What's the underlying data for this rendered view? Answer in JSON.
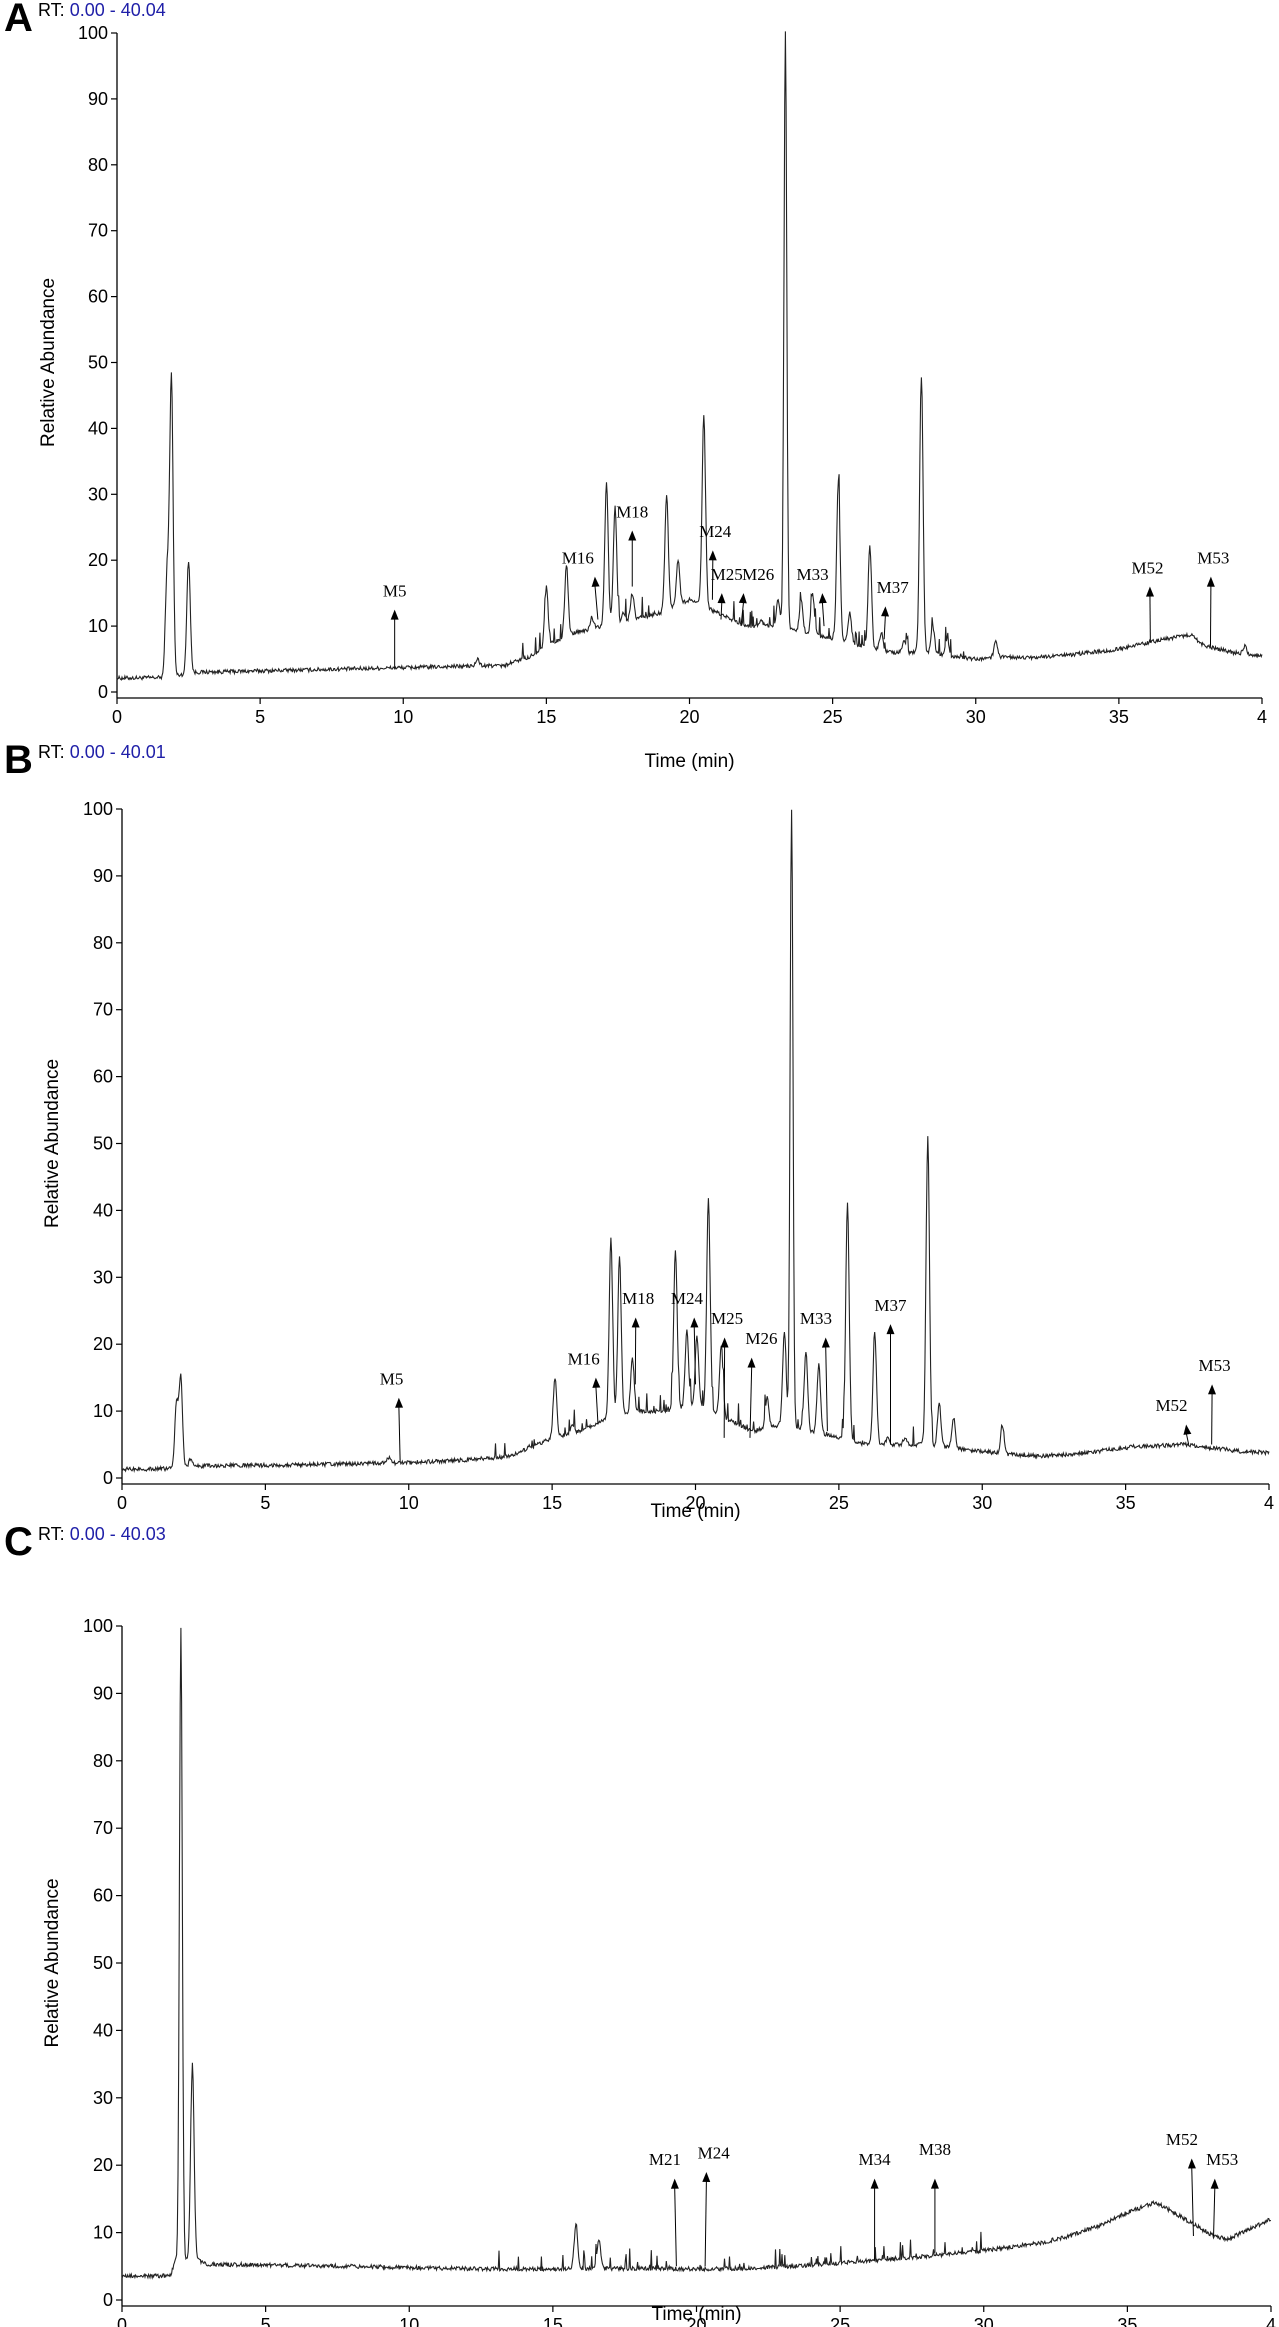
{
  "chart_data": [
    {
      "panel": "A",
      "type": "line",
      "rt_prefix": "RT:",
      "rt_range": "0.00 - 40.04",
      "xlabel": "Time (min)",
      "ylabel": "Relative Abundance",
      "xlim": [
        0,
        40
      ],
      "ylim": [
        0,
        100
      ],
      "x_ticks": [
        "0",
        "5",
        "10",
        "15",
        "20",
        "25",
        "30",
        "35",
        "4"
      ],
      "y_ticks": [
        "0",
        "10",
        "20",
        "30",
        "40",
        "50",
        "60",
        "70",
        "80",
        "90",
        "100"
      ],
      "baseline": [
        [
          0,
          2.1
        ],
        [
          1.6,
          2.2
        ],
        [
          2.8,
          3.0
        ],
        [
          5,
          3.2
        ],
        [
          8,
          3.5
        ],
        [
          10,
          3.7
        ],
        [
          12,
          3.9
        ],
        [
          13.5,
          4.0
        ],
        [
          14.5,
          5.5
        ],
        [
          15,
          7
        ],
        [
          16,
          9
        ],
        [
          17,
          10
        ],
        [
          18,
          11
        ],
        [
          19,
          12
        ],
        [
          20,
          14
        ],
        [
          21,
          12
        ],
        [
          22,
          10
        ],
        [
          23,
          10
        ],
        [
          24,
          9
        ],
        [
          25,
          8
        ],
        [
          26,
          7
        ],
        [
          27,
          6
        ],
        [
          28,
          6
        ],
        [
          29,
          5.5
        ],
        [
          30,
          5
        ],
        [
          31,
          5.3
        ],
        [
          32,
          5.2
        ],
        [
          33,
          5.5
        ],
        [
          34,
          6
        ],
        [
          35,
          6.5
        ],
        [
          36,
          7.5
        ],
        [
          37,
          8.3
        ],
        [
          37.5,
          8.7
        ],
        [
          38,
          7
        ],
        [
          39,
          6
        ],
        [
          40,
          5.5
        ]
      ],
      "peaks": [
        [
          1.9,
          48
        ],
        [
          1.75,
          18
        ],
        [
          2.5,
          20
        ],
        [
          12.6,
          5
        ],
        [
          15.0,
          16
        ],
        [
          15.7,
          19
        ],
        [
          16.6,
          11
        ],
        [
          17.1,
          32
        ],
        [
          17.4,
          28
        ],
        [
          17.7,
          12
        ],
        [
          18.0,
          15
        ],
        [
          18.4,
          9
        ],
        [
          19.2,
          30
        ],
        [
          19.6,
          20
        ],
        [
          20.0,
          11
        ],
        [
          20.5,
          42
        ],
        [
          21.0,
          9
        ],
        [
          21.8,
          10
        ],
        [
          22.5,
          11
        ],
        [
          23.1,
          14
        ],
        [
          23.35,
          100
        ],
        [
          23.9,
          14
        ],
        [
          24.3,
          15
        ],
        [
          25.2,
          32
        ],
        [
          25.6,
          12
        ],
        [
          26.3,
          22
        ],
        [
          26.7,
          9
        ],
        [
          27.5,
          8
        ],
        [
          28.1,
          48
        ],
        [
          28.5,
          10
        ],
        [
          29.0,
          8
        ],
        [
          30.7,
          8
        ],
        [
          36.0,
          7
        ],
        [
          39.4,
          7
        ]
      ],
      "annotations": [
        {
          "label": "M5",
          "x": 9.7,
          "y_tip": 12.5,
          "y_base": 3.7,
          "label_x": 9.7,
          "label_y": 14.5
        },
        {
          "label": "M16",
          "x": 16.8,
          "y_tip": 17.5,
          "y_base": 11,
          "label_x": 16.1,
          "label_y": 19.5
        },
        {
          "label": "M18",
          "x": 18.0,
          "y_tip": 24.5,
          "y_base": 16,
          "label_x": 18.0,
          "label_y": 26.5
        },
        {
          "label": "M24",
          "x": 20.8,
          "y_tip": 21.5,
          "y_base": 14,
          "label_x": 20.9,
          "label_y": 23.5
        },
        {
          "label": "M25",
          "x": 21.1,
          "y_tip": 15,
          "y_base": 11,
          "label_x": 21.3,
          "label_y": 17
        },
        {
          "label": "M26",
          "x": 21.8,
          "y_tip": 15,
          "y_base": 10,
          "label_x": 22.4,
          "label_y": 17
        },
        {
          "label": "M33",
          "x": 24.7,
          "y_tip": 15,
          "y_base": 10,
          "label_x": 24.3,
          "label_y": 17
        },
        {
          "label": "M37",
          "x": 26.8,
          "y_tip": 13,
          "y_base": 8,
          "label_x": 27.1,
          "label_y": 15
        },
        {
          "label": "M52",
          "x": 36.1,
          "y_tip": 16,
          "y_base": 7.5,
          "label_x": 36.0,
          "label_y": 18
        },
        {
          "label": "M53",
          "x": 38.2,
          "y_tip": 17.5,
          "y_base": 7,
          "label_x": 38.3,
          "label_y": 19.5
        }
      ]
    },
    {
      "panel": "B",
      "type": "line",
      "rt_prefix": "RT:",
      "rt_range": "0.00 - 40.01",
      "xlabel": "Time (min)",
      "ylabel": "Relative Abundance",
      "xlim": [
        0,
        40
      ],
      "ylim": [
        0,
        100
      ],
      "x_ticks": [
        "0",
        "5",
        "10",
        "15",
        "20",
        "25",
        "30",
        "35",
        "4"
      ],
      "y_ticks": [
        "0",
        "10",
        "20",
        "30",
        "40",
        "50",
        "60",
        "70",
        "80",
        "90",
        "100"
      ],
      "baseline": [
        [
          0,
          1.3
        ],
        [
          1.7,
          1.4
        ],
        [
          2.8,
          1.8
        ],
        [
          5,
          1.9
        ],
        [
          8,
          2.1
        ],
        [
          10,
          2.3
        ],
        [
          12,
          2.7
        ],
        [
          13.5,
          3.2
        ],
        [
          14.5,
          5
        ],
        [
          15,
          6
        ],
        [
          16,
          7
        ],
        [
          17,
          9
        ],
        [
          18,
          10
        ],
        [
          19,
          10
        ],
        [
          20,
          11
        ],
        [
          21,
          9
        ],
        [
          22,
          7
        ],
        [
          23,
          8
        ],
        [
          24,
          7
        ],
        [
          25,
          6
        ],
        [
          26,
          5
        ],
        [
          27,
          5
        ],
        [
          28,
          5
        ],
        [
          29,
          4.5
        ],
        [
          30,
          4
        ],
        [
          31,
          3.5
        ],
        [
          32,
          3.3
        ],
        [
          33,
          3.5
        ],
        [
          34,
          4
        ],
        [
          35,
          4.5
        ],
        [
          36,
          4.8
        ],
        [
          37,
          5
        ],
        [
          38,
          4.5
        ],
        [
          39,
          4
        ],
        [
          40,
          3.8
        ]
      ],
      "peaks": [
        [
          1.9,
          11
        ],
        [
          2.05,
          15
        ],
        [
          2.4,
          3
        ],
        [
          9.3,
          3
        ],
        [
          12.9,
          3
        ],
        [
          14.1,
          4
        ],
        [
          15.1,
          15
        ],
        [
          15.7,
          8
        ],
        [
          16.2,
          7
        ],
        [
          17.05,
          36
        ],
        [
          17.35,
          33
        ],
        [
          17.8,
          18
        ],
        [
          18.4,
          8
        ],
        [
          19.3,
          34
        ],
        [
          19.7,
          22
        ],
        [
          20.05,
          21
        ],
        [
          20.45,
          42
        ],
        [
          20.9,
          20
        ],
        [
          22.5,
          12
        ],
        [
          23.1,
          22
        ],
        [
          23.35,
          100
        ],
        [
          23.85,
          19
        ],
        [
          24.3,
          17
        ],
        [
          25.3,
          41
        ],
        [
          26.25,
          22
        ],
        [
          26.7,
          6
        ],
        [
          27.3,
          6
        ],
        [
          28.1,
          51
        ],
        [
          28.5,
          11
        ],
        [
          29.0,
          9
        ],
        [
          30.7,
          8
        ],
        [
          35.2,
          5
        ]
      ],
      "annotations": [
        {
          "label": "M5",
          "x": 9.7,
          "y_tip": 12,
          "y_base": 2.4,
          "label_x": 9.4,
          "label_y": 14
        },
        {
          "label": "M16",
          "x": 16.6,
          "y_tip": 15,
          "y_base": 8,
          "label_x": 16.1,
          "label_y": 17
        },
        {
          "label": "M18",
          "x": 17.9,
          "y_tip": 24,
          "y_base": 14,
          "label_x": 18.0,
          "label_y": 26
        },
        {
          "label": "M24",
          "x": 20.0,
          "y_tip": 24,
          "y_base": 14,
          "label_x": 19.7,
          "label_y": 26
        },
        {
          "label": "M25",
          "x": 21.0,
          "y_tip": 21,
          "y_base": 6,
          "label_x": 21.1,
          "label_y": 23
        },
        {
          "label": "M26",
          "x": 21.9,
          "y_tip": 18,
          "y_base": 6,
          "label_x": 22.3,
          "label_y": 20
        },
        {
          "label": "M33",
          "x": 24.6,
          "y_tip": 21,
          "y_base": 7,
          "label_x": 24.2,
          "label_y": 23
        },
        {
          "label": "M37",
          "x": 26.8,
          "y_tip": 23,
          "y_base": 5,
          "label_x": 26.8,
          "label_y": 25
        },
        {
          "label": "M52",
          "x": 37.2,
          "y_tip": 8,
          "y_base": 5,
          "label_x": 36.6,
          "label_y": 10
        },
        {
          "label": "M53",
          "x": 38.0,
          "y_tip": 14,
          "y_base": 5,
          "label_x": 38.1,
          "label_y": 16
        }
      ]
    },
    {
      "panel": "C",
      "type": "line",
      "rt_prefix": "RT:",
      "rt_range": "0.00 - 40.03",
      "xlabel": "Time (min)",
      "ylabel": "Relative Abundance",
      "xlim": [
        0,
        40
      ],
      "ylim": [
        0,
        100
      ],
      "x_ticks": [
        "0",
        "5",
        "10",
        "15",
        "20",
        "25",
        "30",
        "35",
        "4"
      ],
      "y_ticks": [
        "0",
        "10",
        "20",
        "30",
        "40",
        "50",
        "60",
        "70",
        "80",
        "90",
        "100"
      ],
      "baseline": [
        [
          0,
          3.5
        ],
        [
          1.7,
          3.6
        ],
        [
          1.85,
          6
        ],
        [
          2.6,
          6
        ],
        [
          3,
          5.3
        ],
        [
          5,
          5.2
        ],
        [
          8,
          5
        ],
        [
          10,
          4.8
        ],
        [
          13,
          4.6
        ],
        [
          15,
          4.6
        ],
        [
          18,
          4.7
        ],
        [
          20,
          4.6
        ],
        [
          22,
          4.7
        ],
        [
          24,
          5.2
        ],
        [
          26,
          5.8
        ],
        [
          28,
          6.5
        ],
        [
          30,
          7.3
        ],
        [
          32,
          8.5
        ],
        [
          33,
          9.5
        ],
        [
          34,
          11
        ],
        [
          35,
          13
        ],
        [
          36,
          14.5
        ],
        [
          37,
          12
        ],
        [
          38,
          9.5
        ],
        [
          38.5,
          9
        ],
        [
          39,
          10
        ],
        [
          40,
          12
        ]
      ],
      "peaks": [
        [
          2.05,
          100
        ],
        [
          2.45,
          35
        ],
        [
          15.8,
          11
        ],
        [
          16.6,
          9
        ]
      ],
      "annotations": [
        {
          "label": "M21",
          "x": 19.3,
          "y_tip": 18,
          "y_base": 5,
          "label_x": 18.9,
          "label_y": 20
        },
        {
          "label": "M24",
          "x": 20.3,
          "y_tip": 19,
          "y_base": 5,
          "label_x": 20.6,
          "label_y": 21
        },
        {
          "label": "M34",
          "x": 26.2,
          "y_tip": 18,
          "y_base": 6,
          "label_x": 26.2,
          "label_y": 20
        },
        {
          "label": "M38",
          "x": 28.3,
          "y_tip": 18,
          "y_base": 7,
          "label_x": 28.3,
          "label_y": 21.5
        },
        {
          "label": "M52",
          "x": 37.3,
          "y_tip": 21,
          "y_base": 9.5,
          "label_x": 36.9,
          "label_y": 23
        },
        {
          "label": "M53",
          "x": 38.0,
          "y_tip": 18,
          "y_base": 9.5,
          "label_x": 38.3,
          "label_y": 20
        }
      ]
    }
  ]
}
